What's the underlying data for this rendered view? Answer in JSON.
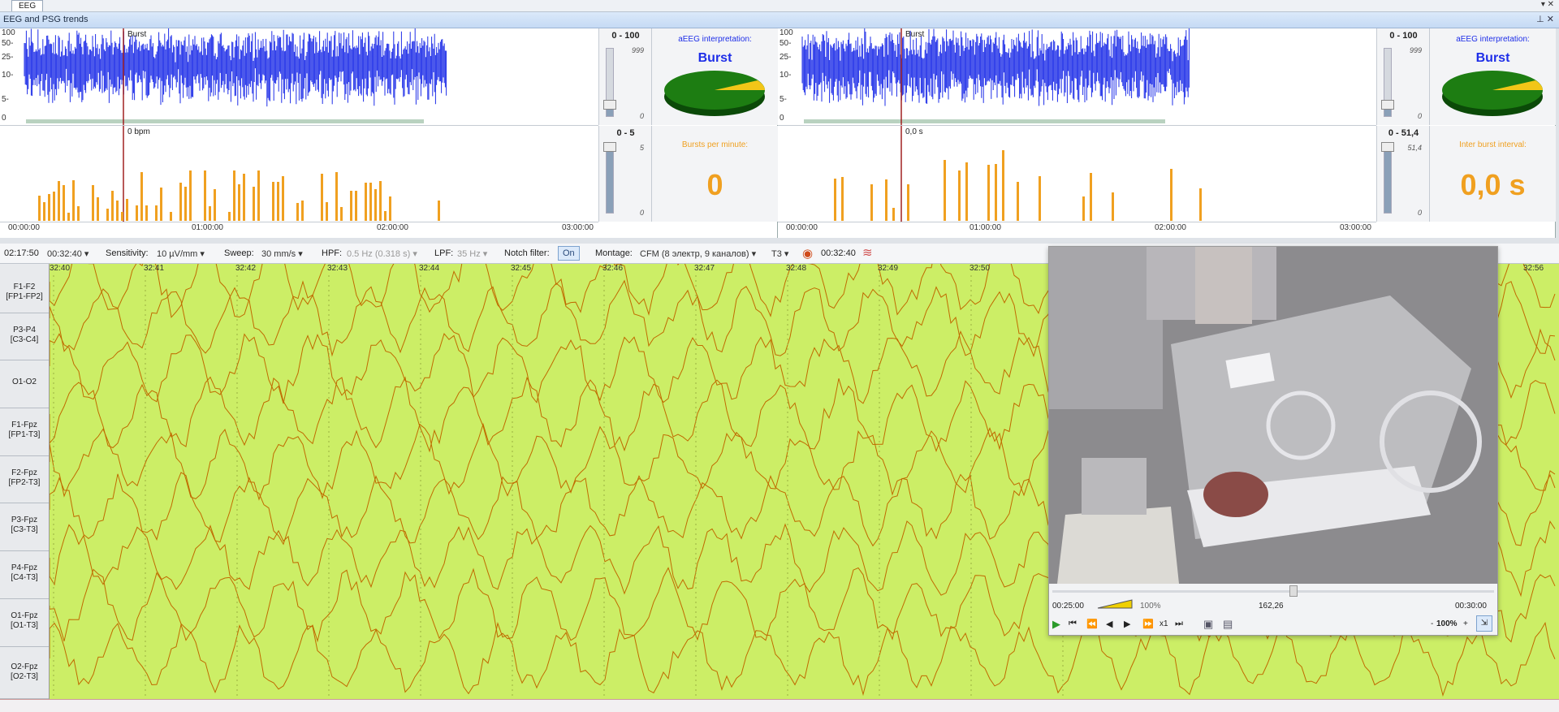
{
  "window": {
    "tab": "EEG",
    "panel_title": "EEG and PSG trends",
    "controls": "▾ ✕",
    "panel_controls": "⊥ ✕"
  },
  "left": {
    "aeeg": {
      "marker_label": "Burst",
      "yticks": [
        "100",
        "50-",
        "25-",
        "10-",
        "5-",
        "0"
      ],
      "range": "0 - 100",
      "slider_top": "999",
      "slider_bottom": "0",
      "interp_label": "aEEG interpretation:",
      "interp_value": "Burst"
    },
    "bursts": {
      "marker_label": "0 bpm",
      "range": "0 - 5",
      "slider_top": "5",
      "slider_bottom": "0",
      "interp_label": "Bursts per minute:",
      "interp_value": "0"
    },
    "time_axis": [
      "00:00:00",
      "01:00:00",
      "02:00:00",
      "03:00:00"
    ]
  },
  "right": {
    "aeeg": {
      "marker_label": "Burst",
      "yticks": [
        "100",
        "50-",
        "25-",
        "10-",
        "5-",
        "0"
      ],
      "range": "0 - 100",
      "slider_top": "999",
      "slider_bottom": "0",
      "interp_label": "aEEG interpretation:",
      "interp_value": "Burst"
    },
    "ibi": {
      "marker_label": "0,0 s",
      "range": "0 - 51,4",
      "slider_top": "51,4",
      "slider_bottom": "0",
      "interp_label": "Inter burst interval:",
      "interp_value": "0,0 s"
    },
    "time_axis": [
      "00:00:00",
      "01:00:00",
      "02:00:00",
      "03:00:00"
    ]
  },
  "toolbar": {
    "elapsed": "02:17:50",
    "position": "00:32:40",
    "sensitivity_label": "Sensitivity:",
    "sensitivity": "10 µV/mm",
    "sweep_label": "Sweep:",
    "sweep": "30 mm/s",
    "hpf_label": "HPF:",
    "hpf": "0.5 Hz (0.318 s)",
    "lpf_label": "LPF:",
    "lpf": "35 Hz",
    "notch_label": "Notch filter:",
    "notch": "On",
    "montage_label": "Montage:",
    "montage": "CFM (8 электр, 9 каналов)",
    "ref": "T3",
    "time": "00:32:40"
  },
  "ruler": [
    "32:40",
    "32:41",
    "32:42",
    "32:43",
    "32:44",
    "32:45",
    "32:46",
    "32:47",
    "32:48",
    "32:49",
    "32:50",
    "32:56"
  ],
  "channels": [
    [
      "F1-F2",
      "[FP1-FP2]"
    ],
    [
      "P3-P4",
      "[C3-C4]"
    ],
    [
      "O1-O2",
      ""
    ],
    [
      "F1-Fpz",
      "[FP1-T3]"
    ],
    [
      "F2-Fpz",
      "[FP2-T3]"
    ],
    [
      "P3-Fpz",
      "[C3-T3]"
    ],
    [
      "P4-Fpz",
      "[C4-T3]"
    ],
    [
      "O1-Fpz",
      "[O1-T3]"
    ],
    [
      "O2-Fpz",
      "[O2-T3]"
    ]
  ],
  "video": {
    "start": "00:25:00",
    "volume": "100%",
    "current": "162,26",
    "end": "00:30:00",
    "speed": "x1",
    "zoom": "100%",
    "zoom_minus": "-",
    "zoom_plus": "+"
  },
  "colors": {
    "trace": "#c06a00",
    "eeg_bg": "#ccee66",
    "aeeg": "#1e2ee8",
    "burst_bar": "#f0a020",
    "accent": "#f0a020"
  }
}
